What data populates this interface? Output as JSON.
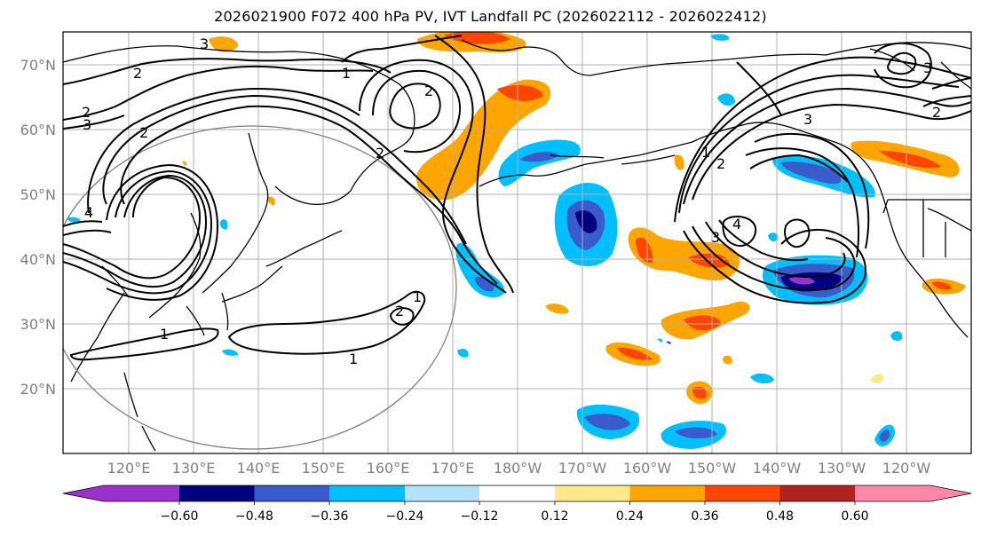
{
  "title": "2026021900 F072 400 hPa PV, IVT Landfall PC (2026022112 - 2026022412)",
  "map": {
    "lat_labels": [
      "70°N",
      "60°N",
      "50°N",
      "40°N",
      "30°N",
      "20°N"
    ],
    "lon_labels": [
      "120°E",
      "130°E",
      "140°E",
      "150°E",
      "160°E",
      "170°E",
      "180°W",
      "170°W",
      "160°W",
      "150°W",
      "140°W",
      "130°W",
      "120°W"
    ],
    "contour_labels": [
      "3",
      "2",
      "3",
      "2",
      "2",
      "1",
      "4",
      "2",
      "2",
      "1",
      "1",
      "1",
      "3",
      "2",
      "3",
      "2",
      "4",
      "3",
      "1",
      "2"
    ]
  },
  "colorbar": {
    "ticks": [
      "−0.60",
      "−0.48",
      "−0.36",
      "−0.24",
      "−0.12",
      "0.12",
      "0.24",
      "0.36",
      "0.48",
      "0.60"
    ],
    "colors": [
      "#9932cc",
      "#000080",
      "#3a5bcc",
      "#00bfff",
      "#b3e2fb",
      "#ffffff",
      "#ffe98a",
      "#ffa500",
      "#ff4500",
      "#b22222",
      "#ff88aa",
      "#ff88aa"
    ]
  }
}
